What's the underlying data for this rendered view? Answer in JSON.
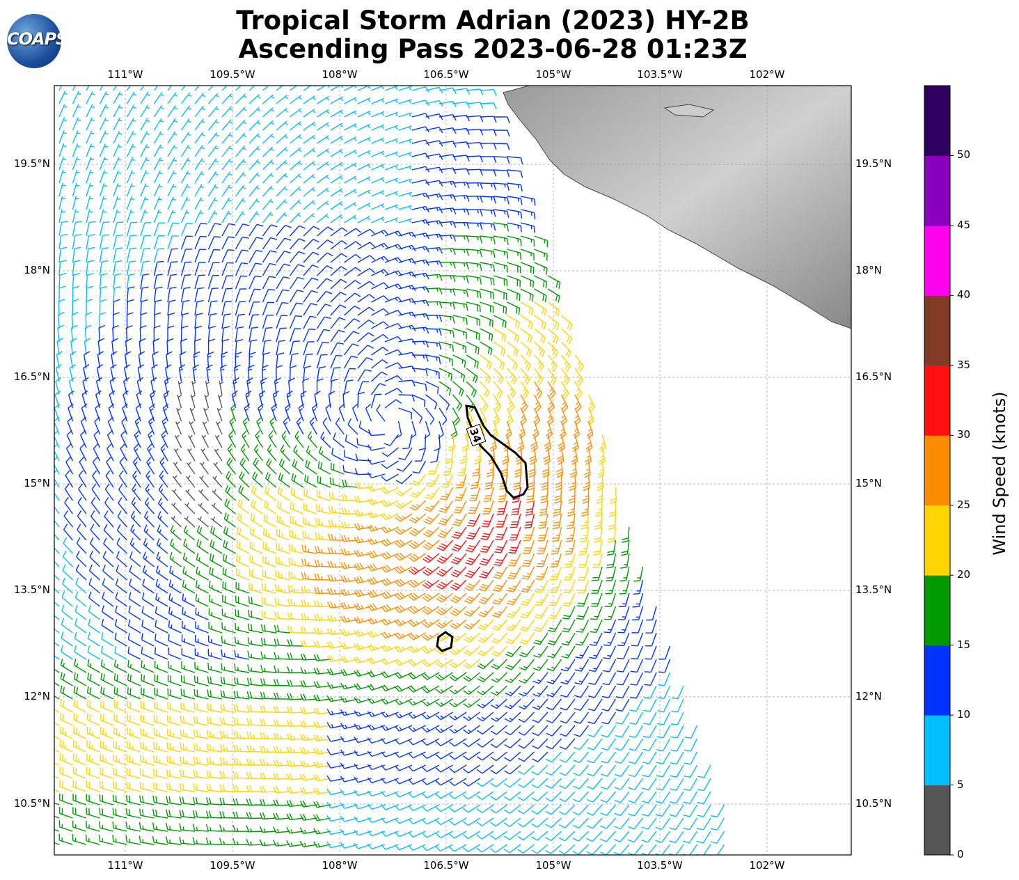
{
  "title": {
    "line1": "Tropical Storm Adrian (2023) HY-2B",
    "line2": "Ascending Pass 2023-06-28 01:23Z"
  },
  "logo_text": "COAPS",
  "lon_labels": [
    "111°W",
    "109.5°W",
    "108°W",
    "106.5°W",
    "105°W",
    "103.5°W",
    "102°W"
  ],
  "lat_labels": [
    "19.5°N",
    "18°N",
    "16.5°N",
    "15°N",
    "13.5°N",
    "12°N",
    "10.5°N"
  ],
  "colorbar": {
    "title": "Wind Speed (knots)",
    "ticks": [
      "0",
      "5",
      "10",
      "15",
      "20",
      "25",
      "30",
      "35",
      "40",
      "45",
      "50"
    ],
    "colors": [
      "#555555",
      "#00bfff",
      "#0033ff",
      "#009900",
      "#ffd400",
      "#ff8c00",
      "#ff1010",
      "#803a26",
      "#ff00ee",
      "#8800bb",
      "#2e0060"
    ]
  },
  "contour_label": "34",
  "storm_center": {
    "lon": -107.3,
    "lat": 15.9
  }
}
